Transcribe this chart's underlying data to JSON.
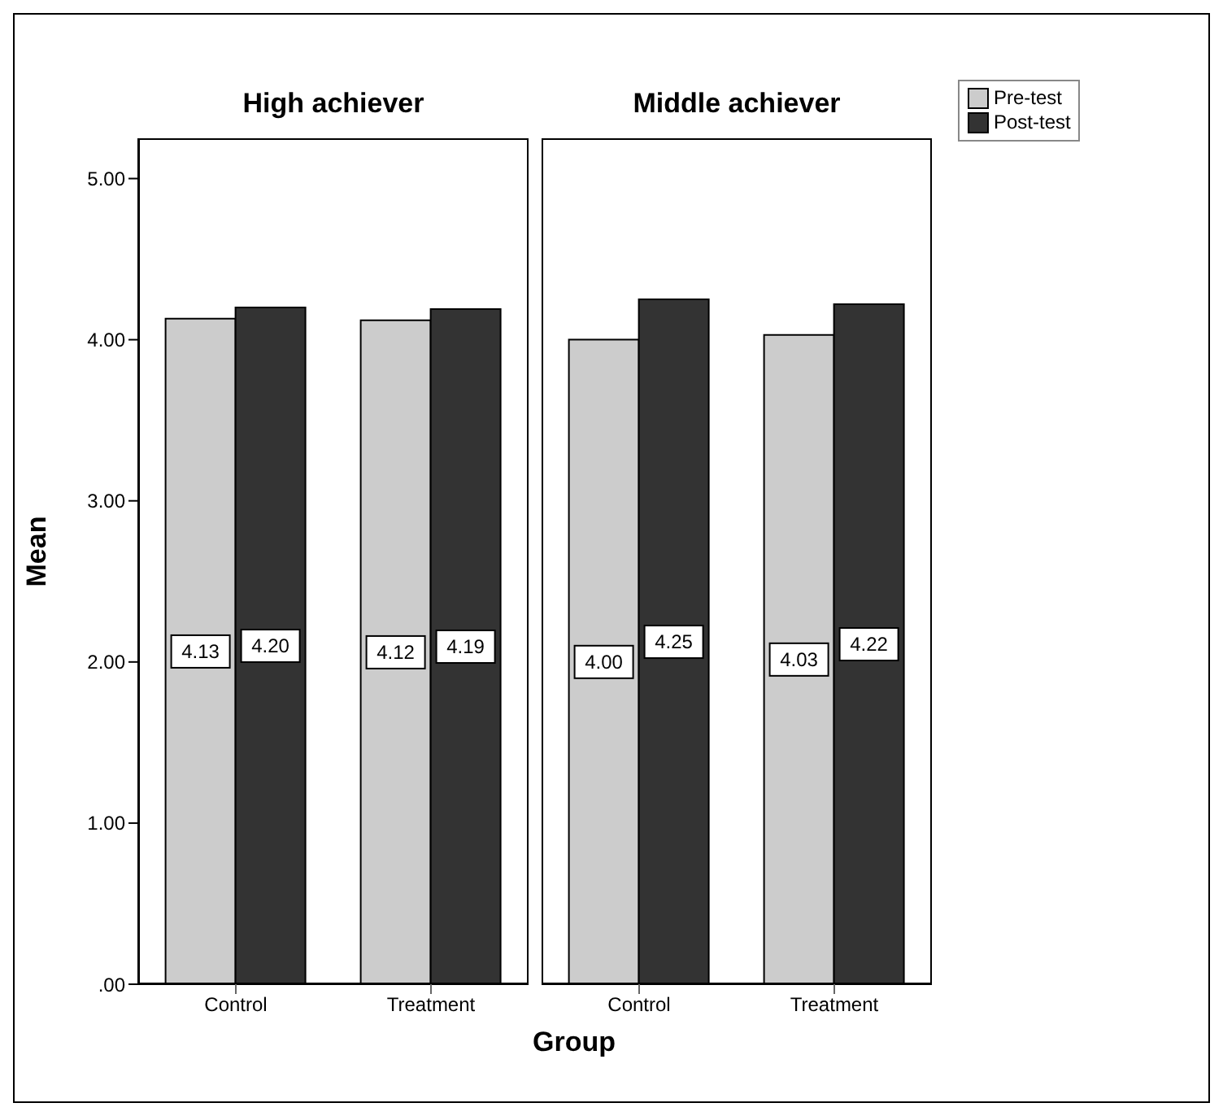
{
  "chart_data": [
    {
      "type": "bar",
      "title": "High achiever",
      "ylabel": "Mean",
      "xlabel": "Group",
      "legend": "top right",
      "categories": [
        "Control",
        "Treatment"
      ],
      "ylim": [
        0,
        5.25
      ],
      "yticks": [
        {
          "value": 0,
          "label": ".00"
        },
        {
          "value": 1,
          "label": "1.00"
        },
        {
          "value": 2,
          "label": "2.00"
        },
        {
          "value": 3,
          "label": "3.00"
        },
        {
          "value": 4,
          "label": "4.00"
        },
        {
          "value": 5,
          "label": "5.00"
        }
      ],
      "series": [
        {
          "name": "Pre-test",
          "color": "#cccccc",
          "values": [
            4.13,
            4.12
          ],
          "value_labels": [
            "4.13",
            "4.12"
          ]
        },
        {
          "name": "Post-test",
          "color": "#333333",
          "values": [
            4.2,
            4.19
          ],
          "value_labels": [
            "4.20",
            "4.19"
          ]
        }
      ]
    },
    {
      "type": "bar",
      "title": "Middle achiever",
      "categories": [
        "Control",
        "Treatment"
      ],
      "ylim": [
        0,
        5.25
      ],
      "tick_labels": "x",
      "series": [
        {
          "color": "#cccccc",
          "values": [
            4.0,
            4.03
          ],
          "value_labels": [
            "4.00",
            "4.03"
          ]
        },
        {
          "color": "#333333",
          "values": [
            4.25,
            4.22
          ],
          "value_labels": [
            "4.25",
            "4.22"
          ]
        }
      ]
    }
  ]
}
